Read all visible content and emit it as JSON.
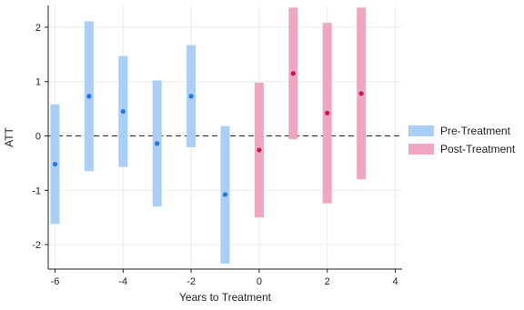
{
  "chart_data": {
    "type": "errorbar",
    "xlabel": "Years to Treatment",
    "ylabel": "ATT",
    "xlim": [
      -6.2,
      4.2
    ],
    "ylim": [
      -2.45,
      2.4
    ],
    "xticks": [
      -6,
      -4,
      -2,
      0,
      2,
      4
    ],
    "yticks": [
      -2,
      -1,
      0,
      1,
      2
    ],
    "grid": true,
    "reference_line_y": 0,
    "legend_position": "right",
    "series": [
      {
        "name": "Pre-Treatment",
        "bar_color": "#a9cff7",
        "point_color": "#1f78e8",
        "points": [
          {
            "x": -6,
            "y": -0.52,
            "lo": -1.62,
            "hi": 0.58
          },
          {
            "x": -5,
            "y": 0.73,
            "lo": -0.65,
            "hi": 2.11
          },
          {
            "x": -4,
            "y": 0.45,
            "lo": -0.57,
            "hi": 1.47
          },
          {
            "x": -3,
            "y": -0.14,
            "lo": -1.3,
            "hi": 1.02
          },
          {
            "x": -2,
            "y": 0.73,
            "lo": -0.21,
            "hi": 1.67
          },
          {
            "x": -1,
            "y": -1.08,
            "lo": -2.35,
            "hi": 0.18
          }
        ]
      },
      {
        "name": "Post-Treatment",
        "bar_color": "#f0a6c2",
        "point_color": "#d1154f",
        "points": [
          {
            "x": 0,
            "y": -0.26,
            "lo": -1.5,
            "hi": 0.98
          },
          {
            "x": 1,
            "y": 1.15,
            "lo": -0.06,
            "hi": 2.36
          },
          {
            "x": 2,
            "y": 0.42,
            "lo": -1.24,
            "hi": 2.08
          },
          {
            "x": 3,
            "y": 0.78,
            "lo": -0.8,
            "hi": 2.36
          }
        ]
      }
    ]
  }
}
